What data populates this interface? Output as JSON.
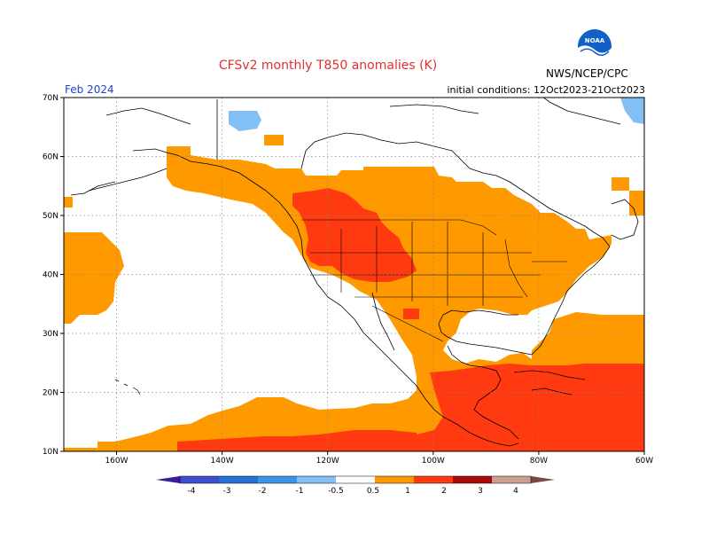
{
  "header": {
    "title": "CFSv2 monthly T850 anomalies (K)",
    "period": "Feb 2024",
    "initial_conditions": "initial conditions: 12Oct2023-21Oct2023",
    "agency": "NWS/NCEP/CPC",
    "logo_text": "NOAA"
  },
  "map": {
    "lon_range": [
      -170,
      -60
    ],
    "lat_range": [
      10,
      70
    ],
    "lat_labels": [
      "70N",
      "60N",
      "50N",
      "40N",
      "30N",
      "20N",
      "10N"
    ],
    "lon_labels": [
      "160W",
      "140W",
      "120W",
      "100W",
      "80W",
      "60W"
    ]
  },
  "colorbar": {
    "labels": [
      "-4",
      "-3",
      "-2",
      "-1",
      "-0.5",
      "0.5",
      "1",
      "2",
      "3",
      "4"
    ],
    "colors": [
      "#3a1aa0",
      "#3b4fd0",
      "#2870d8",
      "#3a95e8",
      "#82bff5",
      "#ffffff",
      "#ff9900",
      "#ff3a10",
      "#a80a0a",
      "#c8a090",
      "#7a4a40"
    ]
  },
  "anomaly_colors": {
    "weak_negative": "#82bff5",
    "positive_0_5_to_1": "#ff9900",
    "positive_1_to_2": "#ff3a10",
    "coast_fill_land": "#ffffff"
  }
}
